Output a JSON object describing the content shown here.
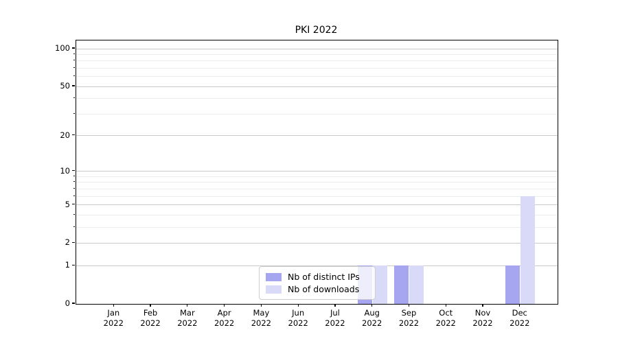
{
  "chart_data": {
    "type": "bar",
    "title": "PKI 2022",
    "categories": [
      "Jan 2022",
      "Feb 2022",
      "Mar 2022",
      "Apr 2022",
      "May 2022",
      "Jun 2022",
      "Jul 2022",
      "Aug 2022",
      "Sep 2022",
      "Oct 2022",
      "Nov 2022",
      "Dec 2022"
    ],
    "series": [
      {
        "name": "Nb of distinct IPs",
        "color": "#a6a6f0",
        "values": [
          0,
          0,
          0,
          0,
          0,
          0,
          0,
          1,
          1,
          0,
          0,
          1
        ]
      },
      {
        "name": "Nb of downloads",
        "color": "#d9d9f8",
        "values": [
          0,
          0,
          0,
          0,
          0,
          0,
          0,
          1,
          1,
          0,
          0,
          6
        ]
      }
    ],
    "xlabel": "",
    "ylabel": "",
    "yscale": "log1p",
    "ylim": [
      0,
      117
    ],
    "yticks": [
      0,
      1,
      2,
      5,
      10,
      20,
      50,
      100
    ],
    "minor_yticks": [
      3,
      4,
      6,
      7,
      8,
      9,
      30,
      40,
      60,
      70,
      80,
      90
    ],
    "grid": "horizontal",
    "legend_position": "bottom-center"
  },
  "colors": {
    "major_grid": "#c9c9c9",
    "minor_grid": "#ededed",
    "axis": "#000000",
    "legend_border": "#cccccc"
  }
}
